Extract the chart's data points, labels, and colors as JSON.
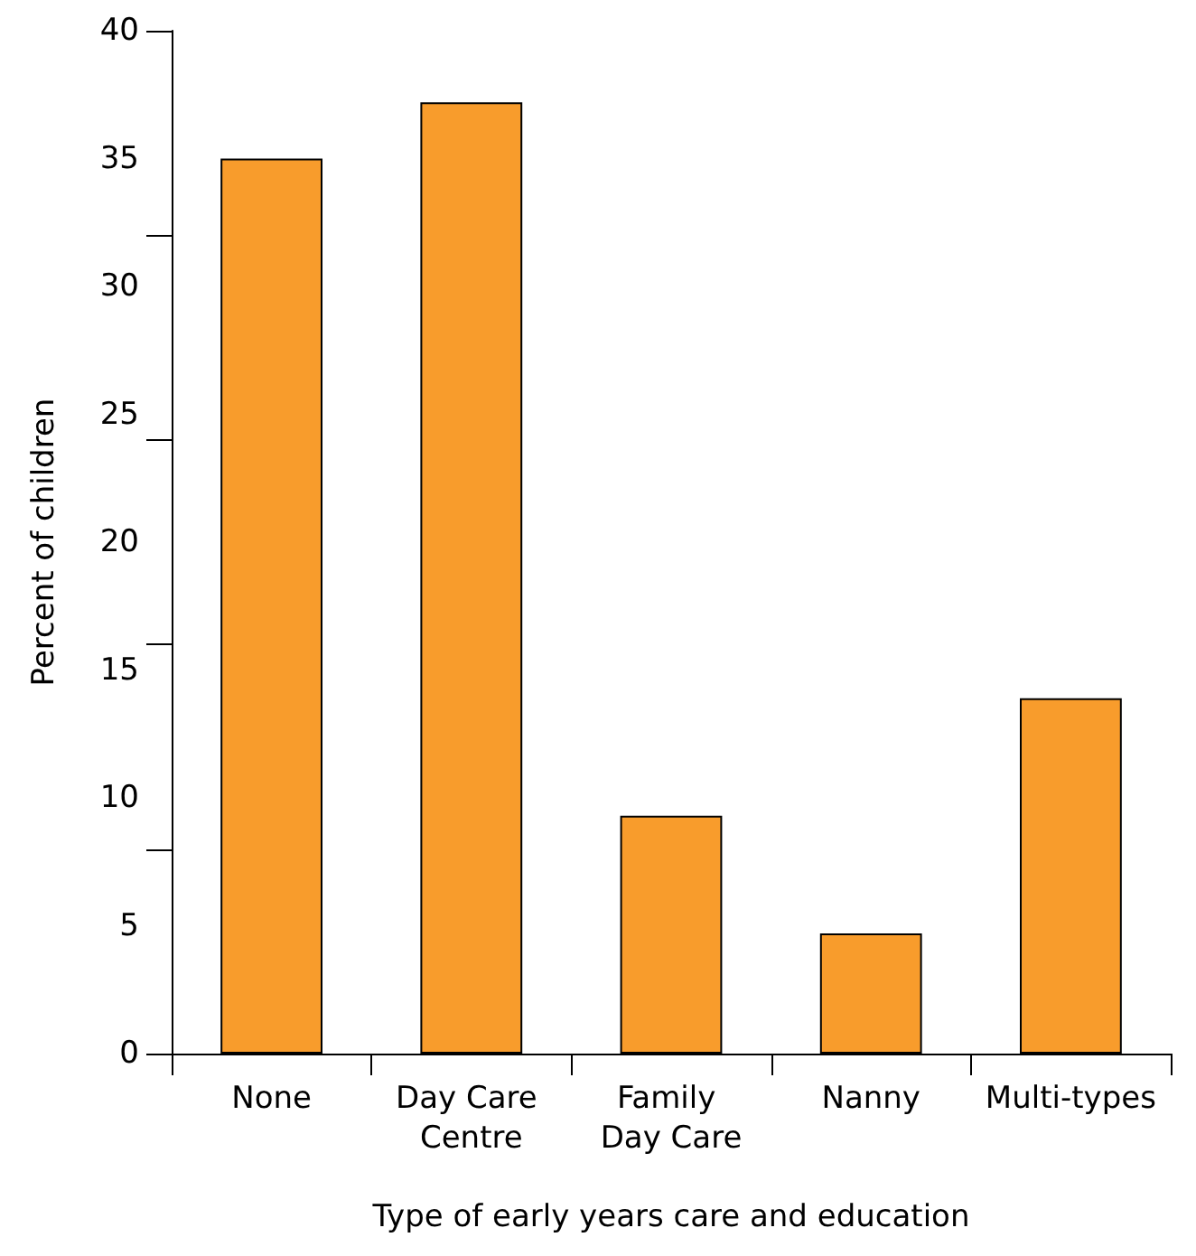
{
  "chart_data": {
    "type": "bar",
    "xlabel": "Type of early years care and education",
    "ylabel": "Percent of children",
    "categories": [
      "None",
      "Day Care Centre",
      "Family Day Care",
      "Nanny",
      "Multi-types"
    ],
    "values": [
      35,
      37.2,
      9.3,
      4.7,
      13.9
    ],
    "color": "#f89c2c",
    "ylim": [
      0,
      40
    ],
    "yticks": [
      0,
      5,
      {
        "value": 8,
        "label": null
      },
      10,
      15,
      {
        "value": 16,
        "label": null
      },
      20,
      {
        "value": 24,
        "label": null
      },
      25,
      30,
      {
        "value": 32,
        "label": null
      },
      35,
      40
    ],
    "grid": false
  }
}
